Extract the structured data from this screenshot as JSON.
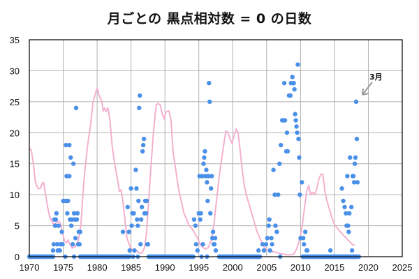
{
  "chart_data": {
    "type": "scatter",
    "title": "月ごとの  黒点相対数 = 0  の日数",
    "xlabel": "",
    "ylabel": "",
    "xlim": [
      1970,
      2025
    ],
    "ylim": [
      0,
      35
    ],
    "xticks": [
      1970,
      1975,
      1980,
      1985,
      1990,
      1995,
      2000,
      2005,
      2010,
      2015,
      2020,
      2025
    ],
    "yticks": [
      0,
      5,
      10,
      15,
      20,
      25,
      30,
      35
    ],
    "grid": true,
    "legend": "none",
    "colors": {
      "points": "#4a90e8",
      "line": "#f4b0cf",
      "grid": "#b0b0b0",
      "annotation_arrow": "#9a9a9a"
    },
    "annotation": {
      "text": "3月",
      "target": [
        2018.2,
        25
      ]
    },
    "series": [
      {
        "name": "monthly_spotless_days",
        "kind": "scatter",
        "zero_ranges": [
          [
            1970.0,
            1973.5
          ],
          [
            1977.5,
            1984.8
          ],
          [
            1987.6,
            1994.2
          ],
          [
            1998.0,
            2004.0
          ],
          [
            2010.3,
            2018.4
          ]
        ],
        "points": [
          [
            1973.5,
            1
          ],
          [
            1973.6,
            2
          ],
          [
            1973.7,
            6
          ],
          [
            1973.8,
            5
          ],
          [
            1973.9,
            6
          ],
          [
            1974.0,
            7
          ],
          [
            1974.1,
            2
          ],
          [
            1974.2,
            1
          ],
          [
            1974.3,
            5
          ],
          [
            1974.5,
            1
          ],
          [
            1974.6,
            2
          ],
          [
            1974.8,
            4
          ],
          [
            1974.9,
            2
          ],
          [
            1975.0,
            9
          ],
          [
            1975.2,
            9
          ],
          [
            1975.4,
            18
          ],
          [
            1975.5,
            13
          ],
          [
            1975.5,
            9
          ],
          [
            1975.7,
            9
          ],
          [
            1975.9,
            18
          ],
          [
            1975.9,
            13
          ],
          [
            1975.6,
            7
          ],
          [
            1976.0,
            6
          ],
          [
            1976.1,
            16
          ],
          [
            1976.2,
            5
          ],
          [
            1976.3,
            6
          ],
          [
            1976.4,
            2
          ],
          [
            1976.5,
            15
          ],
          [
            1976.6,
            7
          ],
          [
            1976.7,
            6
          ],
          [
            1976.8,
            3
          ],
          [
            1976.9,
            24
          ],
          [
            1977.0,
            6
          ],
          [
            1977.1,
            7
          ],
          [
            1977.2,
            2
          ],
          [
            1977.3,
            4
          ],
          [
            1977.4,
            2
          ],
          [
            1977.5,
            4
          ],
          [
            1976.6,
            0
          ],
          [
            1975.3,
            0
          ],
          [
            1983.8,
            4
          ],
          [
            1984.5,
            8
          ],
          [
            1984.7,
            4
          ],
          [
            1984.8,
            1
          ],
          [
            1985.0,
            11
          ],
          [
            1985.1,
            5
          ],
          [
            1985.2,
            7
          ],
          [
            1985.4,
            7
          ],
          [
            1985.5,
            1
          ],
          [
            1985.7,
            14
          ],
          [
            1985.8,
            11
          ],
          [
            1985.9,
            6
          ],
          [
            1986.0,
            5
          ],
          [
            1986.1,
            9
          ],
          [
            1986.2,
            24
          ],
          [
            1986.3,
            26
          ],
          [
            1986.4,
            2
          ],
          [
            1986.5,
            6
          ],
          [
            1986.6,
            8
          ],
          [
            1986.7,
            17
          ],
          [
            1986.8,
            18
          ],
          [
            1986.9,
            19
          ],
          [
            1987.0,
            7
          ],
          [
            1987.1,
            9
          ],
          [
            1987.2,
            7
          ],
          [
            1987.3,
            9
          ],
          [
            1987.4,
            2
          ],
          [
            1987.5,
            2
          ],
          [
            1986.0,
            0
          ],
          [
            1985.3,
            0
          ],
          [
            1994.3,
            6
          ],
          [
            1994.5,
            5
          ],
          [
            1994.6,
            2
          ],
          [
            1994.8,
            1
          ],
          [
            1995.0,
            7
          ],
          [
            1995.1,
            13
          ],
          [
            1995.2,
            6
          ],
          [
            1995.3,
            7
          ],
          [
            1995.5,
            13
          ],
          [
            1995.6,
            2
          ],
          [
            1995.7,
            15
          ],
          [
            1995.8,
            16
          ],
          [
            1995.9,
            17
          ],
          [
            1996.0,
            13
          ],
          [
            1996.1,
            14
          ],
          [
            1996.2,
            12
          ],
          [
            1996.3,
            9
          ],
          [
            1996.4,
            13
          ],
          [
            1996.5,
            28
          ],
          [
            1996.6,
            25
          ],
          [
            1996.7,
            7
          ],
          [
            1996.8,
            11
          ],
          [
            1996.9,
            13
          ],
          [
            1997.0,
            3
          ],
          [
            1997.1,
            4
          ],
          [
            1997.2,
            2
          ],
          [
            1997.3,
            2
          ],
          [
            1997.4,
            3
          ],
          [
            1997.5,
            1
          ],
          [
            1996.2,
            0
          ],
          [
            1995.4,
            0
          ],
          [
            2003.8,
            1
          ],
          [
            2004.4,
            2
          ],
          [
            2004.6,
            1
          ],
          [
            2004.9,
            2
          ],
          [
            2005.1,
            3
          ],
          [
            2005.3,
            5
          ],
          [
            2005.4,
            6
          ],
          [
            2005.5,
            1
          ],
          [
            2005.7,
            3
          ],
          [
            2005.8,
            2
          ],
          [
            2006.0,
            14
          ],
          [
            2006.2,
            10
          ],
          [
            2006.3,
            5
          ],
          [
            2006.5,
            4
          ],
          [
            2006.7,
            10
          ],
          [
            2006.9,
            15
          ],
          [
            2007.1,
            18
          ],
          [
            2007.3,
            22
          ],
          [
            2007.5,
            22
          ],
          [
            2007.6,
            28
          ],
          [
            2007.7,
            22
          ],
          [
            2007.9,
            17
          ],
          [
            2008.0,
            20
          ],
          [
            2008.1,
            17
          ],
          [
            2008.3,
            26
          ],
          [
            2008.5,
            26
          ],
          [
            2008.6,
            28
          ],
          [
            2008.8,
            29
          ],
          [
            2008.9,
            28
          ],
          [
            2009.0,
            28
          ],
          [
            2009.1,
            27
          ],
          [
            2009.2,
            23
          ],
          [
            2009.3,
            22
          ],
          [
            2009.4,
            21
          ],
          [
            2009.5,
            20
          ],
          [
            2009.6,
            31
          ],
          [
            2009.7,
            19
          ],
          [
            2009.8,
            16
          ],
          [
            2009.9,
            10
          ],
          [
            2010.0,
            3
          ],
          [
            2010.2,
            12
          ],
          [
            2010.4,
            3
          ],
          [
            2010.5,
            2
          ],
          [
            2010.7,
            4
          ],
          [
            2010.9,
            1
          ],
          [
            2011.0,
            1
          ],
          [
            2007.0,
            0
          ],
          [
            2014.4,
            1
          ],
          [
            2016.1,
            11
          ],
          [
            2016.3,
            9
          ],
          [
            2016.5,
            8
          ],
          [
            2016.7,
            7
          ],
          [
            2016.8,
            5
          ],
          [
            2016.9,
            13
          ],
          [
            2017.0,
            5
          ],
          [
            2017.1,
            4
          ],
          [
            2017.2,
            7
          ],
          [
            2017.3,
            16
          ],
          [
            2017.5,
            8
          ],
          [
            2017.6,
            1
          ],
          [
            2017.7,
            13
          ],
          [
            2017.8,
            13
          ],
          [
            2017.9,
            12
          ],
          [
            2018.0,
            15
          ],
          [
            2018.1,
            16
          ],
          [
            2018.2,
            25
          ],
          [
            2018.3,
            19
          ],
          [
            2018.4,
            12
          ],
          [
            2017.8,
            0
          ],
          [
            2018.6,
            0
          ]
        ]
      },
      {
        "name": "smoothed",
        "kind": "line",
        "points": [
          [
            1970.0,
            17.5
          ],
          [
            1970.3,
            17.2
          ],
          [
            1970.6,
            15
          ],
          [
            1970.9,
            12
          ],
          [
            1971.3,
            11
          ],
          [
            1971.6,
            11
          ],
          [
            1971.9,
            11.8
          ],
          [
            1972.1,
            12
          ],
          [
            1972.4,
            10
          ],
          [
            1972.7,
            8
          ],
          [
            1973.0,
            6.5
          ],
          [
            1973.4,
            5.5
          ],
          [
            1973.7,
            5.2
          ],
          [
            1974.0,
            5.5
          ],
          [
            1974.3,
            5.7
          ],
          [
            1974.6,
            5.4
          ],
          [
            1974.9,
            3.8
          ],
          [
            1975.2,
            2.5
          ],
          [
            1975.5,
            2.3
          ],
          [
            1975.7,
            2.7
          ],
          [
            1976.0,
            2.0
          ],
          [
            1976.3,
            1.4
          ],
          [
            1976.6,
            1.5
          ],
          [
            1976.9,
            1.8
          ],
          [
            1977.2,
            2.5
          ],
          [
            1977.6,
            5
          ],
          [
            1977.9,
            10
          ],
          [
            1978.2,
            14
          ],
          [
            1978.6,
            18
          ],
          [
            1979.0,
            21
          ],
          [
            1979.4,
            25
          ],
          [
            1979.8,
            26.5
          ],
          [
            1980.0,
            27.2
          ],
          [
            1980.3,
            26
          ],
          [
            1980.7,
            25
          ],
          [
            1980.9,
            23.5
          ],
          [
            1981.1,
            24
          ],
          [
            1981.3,
            23.4
          ],
          [
            1981.6,
            24
          ],
          [
            1981.9,
            22
          ],
          [
            1982.2,
            18
          ],
          [
            1982.6,
            15
          ],
          [
            1983.0,
            12.5
          ],
          [
            1983.3,
            10.5
          ],
          [
            1983.5,
            10.8
          ],
          [
            1983.8,
            9
          ],
          [
            1984.1,
            6
          ],
          [
            1984.4,
            3
          ],
          [
            1984.9,
            1.5
          ],
          [
            1985.3,
            1.0
          ],
          [
            1985.8,
            1.0
          ],
          [
            1986.2,
            0.6
          ],
          [
            1986.6,
            0.6
          ],
          [
            1987.0,
            1.5
          ],
          [
            1987.3,
            4
          ],
          [
            1987.6,
            9
          ],
          [
            1987.9,
            14
          ],
          [
            1988.3,
            20
          ],
          [
            1988.7,
            24.5
          ],
          [
            1989.0,
            24.7
          ],
          [
            1989.3,
            24.5
          ],
          [
            1989.6,
            23
          ],
          [
            1989.9,
            22.2
          ],
          [
            1990.1,
            23.3
          ],
          [
            1990.4,
            23.5
          ],
          [
            1990.6,
            23.5
          ],
          [
            1990.9,
            22
          ],
          [
            1991.2,
            17
          ],
          [
            1991.6,
            14
          ],
          [
            1992.0,
            11
          ],
          [
            1992.4,
            9
          ],
          [
            1992.8,
            7
          ],
          [
            1993.2,
            6
          ],
          [
            1993.6,
            5
          ],
          [
            1994.0,
            4.5
          ],
          [
            1994.4,
            3.8
          ],
          [
            1994.8,
            3
          ],
          [
            1995.2,
            2
          ],
          [
            1995.6,
            1.5
          ],
          [
            1996.0,
            1.2
          ],
          [
            1996.4,
            1.5
          ],
          [
            1996.8,
            2.5
          ],
          [
            1997.2,
            5
          ],
          [
            1997.6,
            9
          ],
          [
            1998.0,
            13
          ],
          [
            1998.4,
            16
          ],
          [
            1998.8,
            19
          ],
          [
            1999.0,
            20.3
          ],
          [
            1999.3,
            20
          ],
          [
            1999.6,
            19
          ],
          [
            1999.9,
            18.3
          ],
          [
            2000.2,
            19.5
          ],
          [
            2000.5,
            20.6
          ],
          [
            2000.8,
            20
          ],
          [
            2001.1,
            17
          ],
          [
            2001.4,
            14
          ],
          [
            2001.7,
            11.5
          ],
          [
            2002.0,
            10
          ],
          [
            2002.4,
            8.5
          ],
          [
            2002.8,
            7
          ],
          [
            2003.2,
            5.5
          ],
          [
            2003.6,
            4
          ],
          [
            2004.0,
            3
          ],
          [
            2004.4,
            2
          ],
          [
            2004.8,
            1.3
          ],
          [
            2005.2,
            1
          ],
          [
            2005.6,
            0.8
          ],
          [
            2006.0,
            0.8
          ],
          [
            2006.5,
            0.7
          ],
          [
            2007.0,
            0.5
          ],
          [
            2007.5,
            0.4
          ],
          [
            2008.0,
            0.3
          ],
          [
            2008.5,
            0.3
          ],
          [
            2009.0,
            0.4
          ],
          [
            2009.4,
            1.2
          ],
          [
            2009.8,
            2.5
          ],
          [
            2010.2,
            4.5
          ],
          [
            2010.6,
            8
          ],
          [
            2010.9,
            10.5
          ],
          [
            2011.2,
            11.5
          ],
          [
            2011.5,
            10
          ],
          [
            2011.8,
            10.4
          ],
          [
            2012.1,
            10
          ],
          [
            2012.4,
            11
          ],
          [
            2012.7,
            12.5
          ],
          [
            2013.0,
            13.3
          ],
          [
            2013.3,
            13.3
          ],
          [
            2013.6,
            10.5
          ],
          [
            2013.9,
            9
          ],
          [
            2014.3,
            7.5
          ],
          [
            2014.7,
            6
          ],
          [
            2015.1,
            5
          ],
          [
            2015.5,
            4.5
          ],
          [
            2015.9,
            4
          ],
          [
            2016.3,
            3.5
          ],
          [
            2016.7,
            3
          ],
          [
            2017.2,
            2.5
          ],
          [
            2017.6,
            2
          ],
          [
            2018.0,
            1.8
          ]
        ]
      }
    ]
  }
}
